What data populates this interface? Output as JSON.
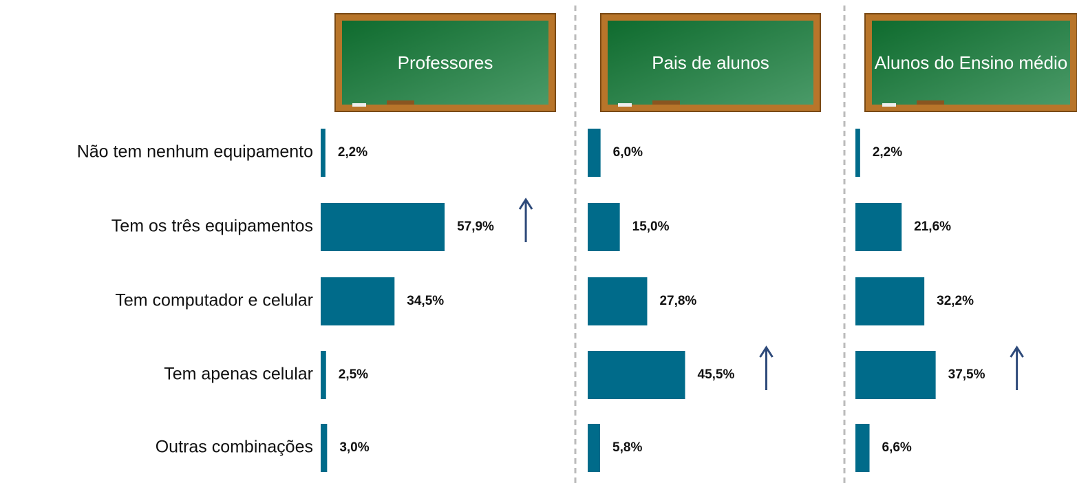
{
  "chart_data": [
    {
      "type": "bar",
      "orientation": "horizontal",
      "title": "Professores",
      "categories": [
        "Não tem nenhum equipamento",
        "Tem os três equipamentos",
        "Tem computador e celular",
        "Tem apenas celular",
        "Outras combinações"
      ],
      "values": [
        2.2,
        57.9,
        34.5,
        2.5,
        3.0
      ],
      "value_labels": [
        "2,2%",
        "57,9%",
        "34,5%",
        "2,5%",
        "3,0%"
      ],
      "color": "#006b8a",
      "arrow_index": 1
    },
    {
      "type": "bar",
      "orientation": "horizontal",
      "title": "Pais de alunos",
      "values": [
        6.0,
        15.0,
        27.8,
        45.5,
        5.8
      ],
      "value_labels": [
        "6,0%",
        "15,0%",
        "27,8%",
        "45,5%",
        "5,8%"
      ],
      "color": "#006b8a",
      "arrow_index": 3
    },
    {
      "type": "bar",
      "orientation": "horizontal",
      "title": "Alunos do Ensino médio",
      "values": [
        2.2,
        21.6,
        32.2,
        37.5,
        6.6
      ],
      "value_labels": [
        "2,2%",
        "21,6%",
        "32,2%",
        "37,5%",
        "6,6%"
      ],
      "color": "#006b8a",
      "arrow_index": 3
    }
  ]
}
